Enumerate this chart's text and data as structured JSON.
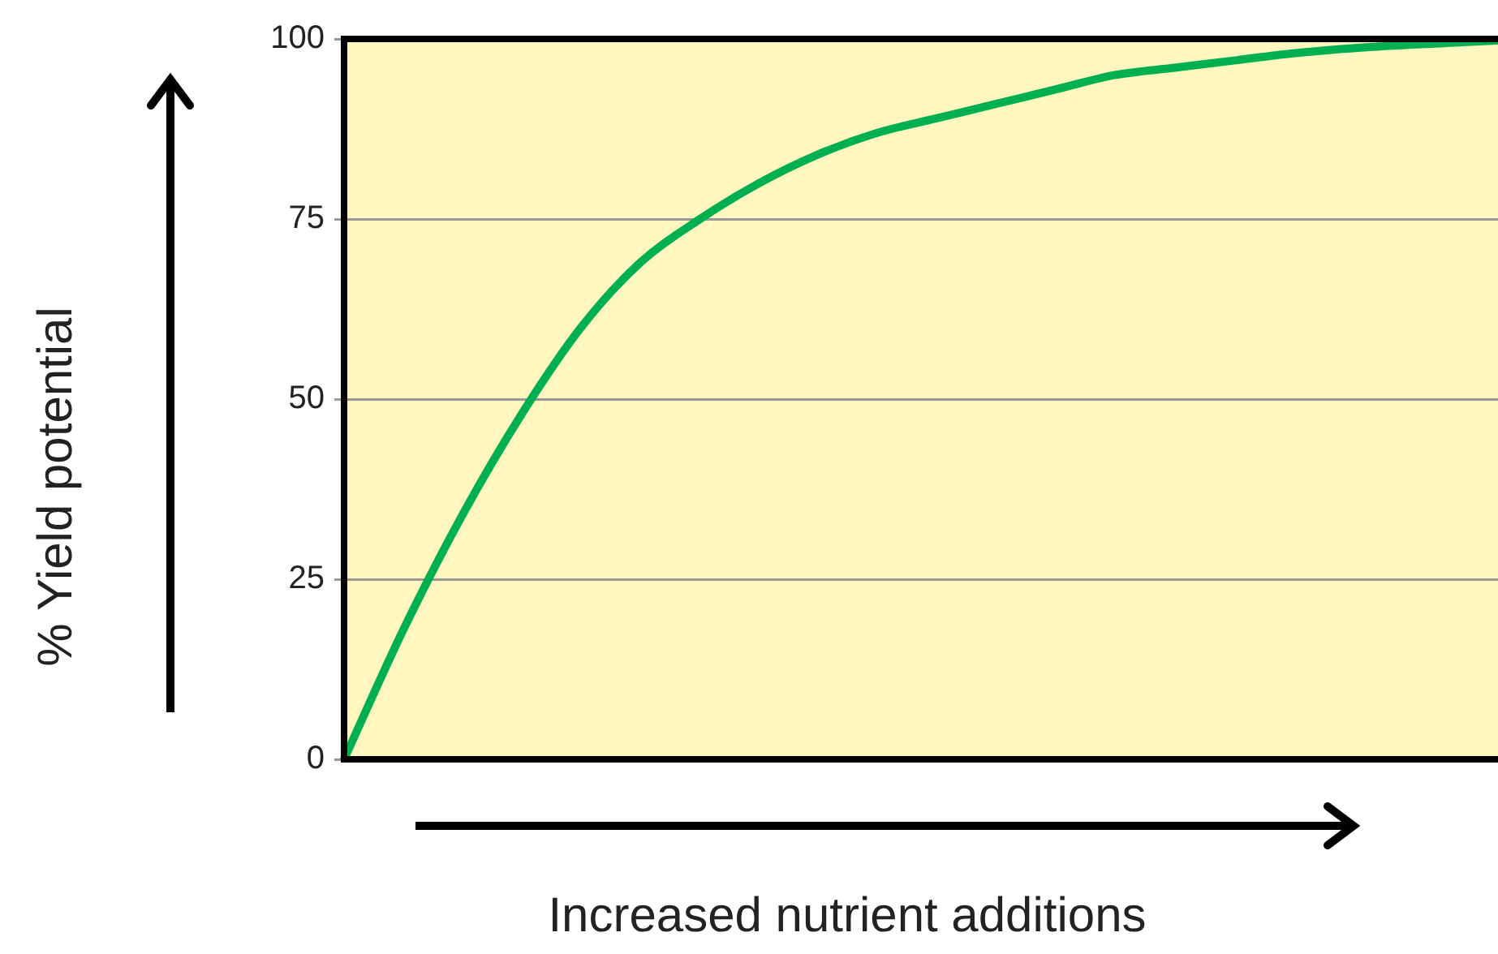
{
  "chart_data": {
    "type": "line",
    "xlabel": "Increased nutrient additions",
    "ylabel": "% Yield potential",
    "categories": [
      null,
      null,
      null,
      null,
      null,
      null,
      null,
      null,
      null,
      null,
      null,
      null,
      null,
      null,
      null,
      null,
      null,
      null,
      null,
      null,
      null
    ],
    "series": [
      {
        "color": "#00b050",
        "values": [
          0,
          18,
          34,
          48,
          60,
          69,
          75,
          80,
          84,
          87,
          89,
          91,
          93,
          95,
          96,
          97,
          98,
          98.7,
          99.2,
          99.6,
          100
        ]
      }
    ],
    "ylim": [
      0,
      100
    ],
    "yticks": [
      0,
      25,
      50,
      75,
      100
    ],
    "grid": "y",
    "marker": "none",
    "tick_labels": "y"
  }
}
